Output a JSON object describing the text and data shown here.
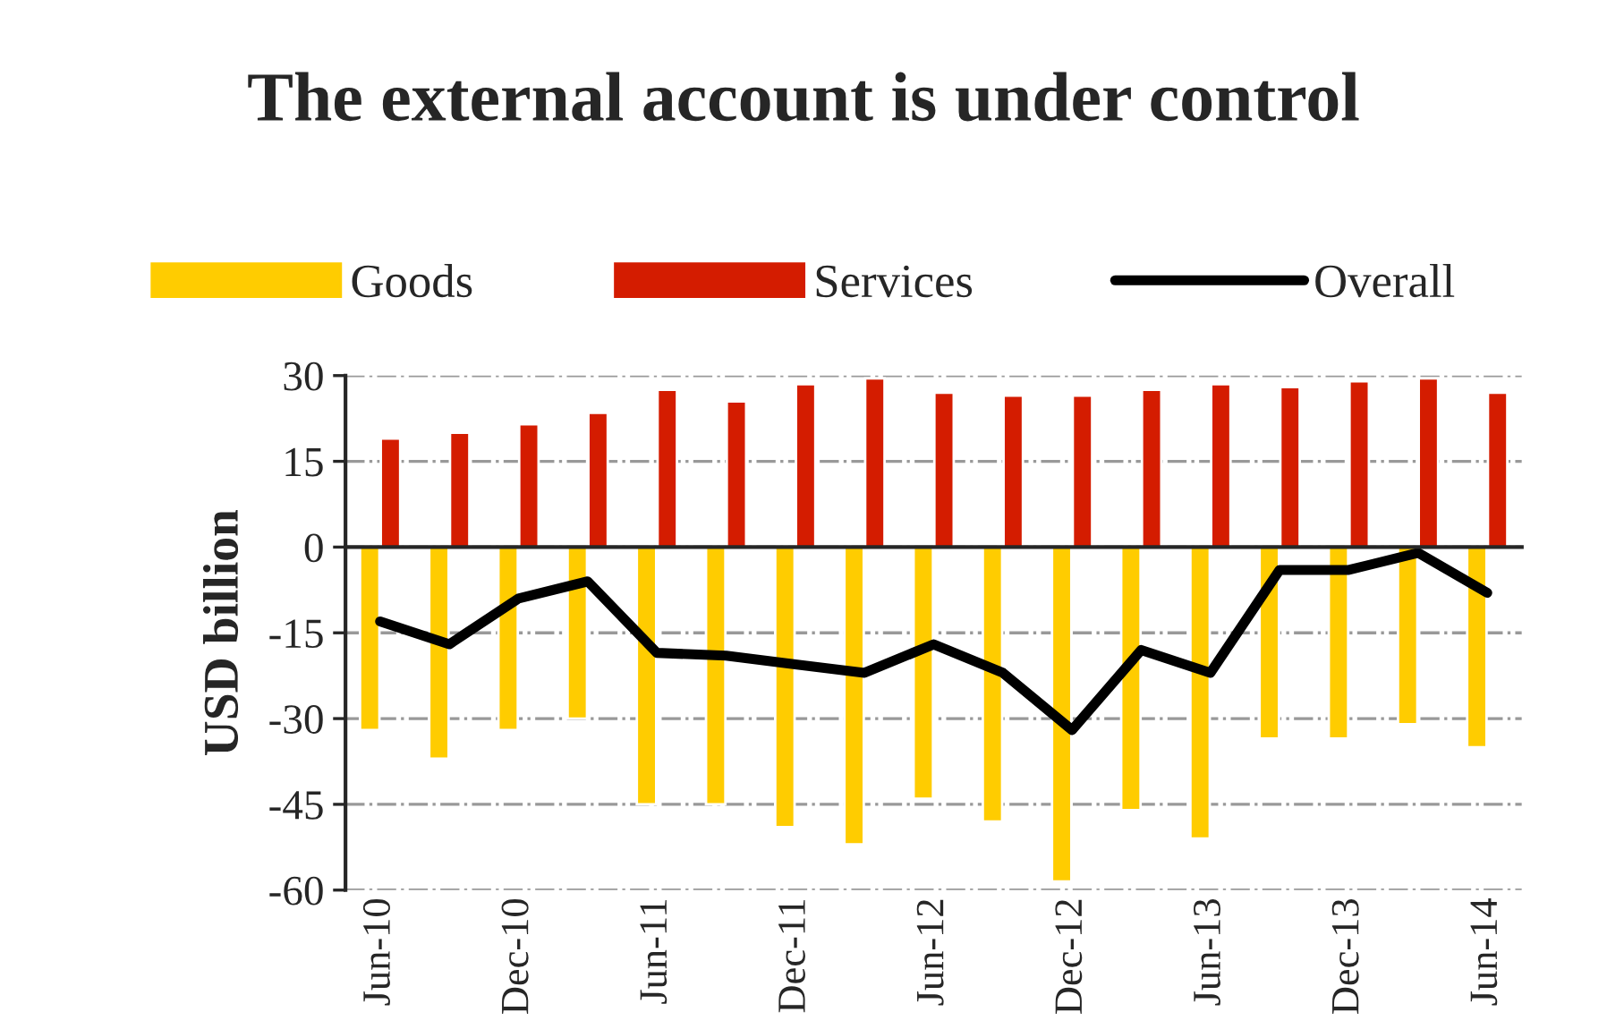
{
  "chart_data": {
    "type": "bar",
    "title": "The external account is under control",
    "ylabel": "USD billion",
    "categories": [
      "Jun-10",
      null,
      "Dec-10",
      null,
      "Jun-11",
      null,
      "Dec-11",
      null,
      "Jun-12",
      null,
      "Dec-12",
      null,
      "Jun-13",
      null,
      "Dec-13",
      null,
      "Jun-14"
    ],
    "series": [
      {
        "name": "Goods",
        "color": "#ffcc00",
        "values": [
          -32,
          -37,
          -32,
          -30,
          -45,
          -45,
          -49,
          -52,
          -44,
          -48,
          -58.5,
          -46,
          -51,
          -33.5,
          -33.5,
          -31,
          -35
        ]
      },
      {
        "name": "Services",
        "color": "#d41c00",
        "values": [
          19,
          20,
          21.5,
          23.5,
          27.5,
          25.5,
          28.5,
          29.5,
          27,
          26.5,
          26.5,
          27.5,
          28.5,
          28,
          29,
          29.5,
          27
        ]
      },
      {
        "name": "Overall",
        "type": "line",
        "color": "#000000",
        "values": [
          -13,
          -17,
          -9,
          -6,
          -18.5,
          -19,
          -20.5,
          -22,
          -17,
          -22,
          -32,
          -18,
          -22,
          -4,
          -4,
          -1,
          -8
        ]
      }
    ],
    "ylim": [
      -60,
      30
    ],
    "yticks": [
      -60,
      -45,
      -30,
      -15,
      0,
      15,
      30
    ],
    "grid": "y",
    "legend": "top"
  }
}
